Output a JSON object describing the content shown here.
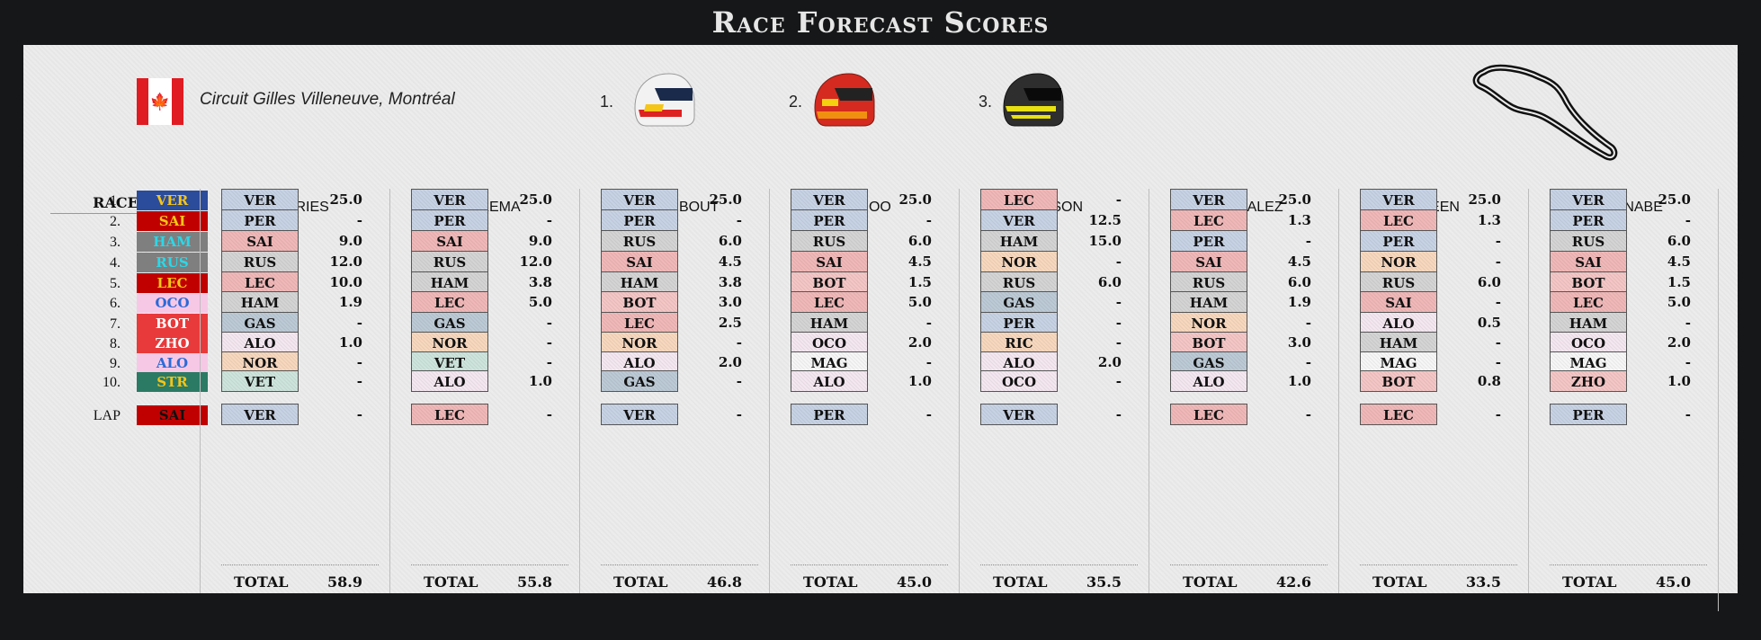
{
  "title": "Race Forecast Scores",
  "circuit": "Circuit Gilles Villeneuve, Montréal",
  "podium": [
    {
      "label": "1.",
      "helmet": "verstappen-helmet"
    },
    {
      "label": "2.",
      "helmet": "sainz-helmet"
    },
    {
      "label": "3.",
      "helmet": "hamilton-helmet"
    }
  ],
  "race_header": "RACE",
  "race": [
    {
      "pos": "1.",
      "drv": "VER"
    },
    {
      "pos": "2.",
      "drv": "SAI"
    },
    {
      "pos": "3.",
      "drv": "HAM"
    },
    {
      "pos": "4.",
      "drv": "RUS"
    },
    {
      "pos": "5.",
      "drv": "LEC"
    },
    {
      "pos": "6.",
      "drv": "OCO"
    },
    {
      "pos": "7.",
      "drv": "BOT"
    },
    {
      "pos": "8.",
      "drv": "ZHO"
    },
    {
      "pos": "9.",
      "drv": "ALO"
    },
    {
      "pos": "10.",
      "drv": "STR"
    }
  ],
  "lap": {
    "label": "LAP",
    "drv": "SAI"
  },
  "total_label": "TOTAL",
  "colors": {
    "VER": "#c7d2e4",
    "PER": "#c7d2e4",
    "SAI": "#f0b8b8",
    "LEC": "#f0b8b8",
    "RUS": "#d4d4d4",
    "HAM": "#d4d4d4",
    "GAS": "#bccad6",
    "NOR": "#f7d8be",
    "ALO": "#f4e7f0",
    "VET": "#cde4dc",
    "BOT": "#f4c6c6",
    "ZHO": "#f4c6c6",
    "OCO": "#f4e7f0",
    "MAG": "#f6f6f6",
    "RIC": "#f7d8be",
    "STR": "#cde4dc"
  },
  "race_colors": {
    "VER": {
      "bg": "#2b4b9b",
      "fg": "#f5c518"
    },
    "SAI": {
      "bg": "#c00000",
      "fg": "#f5c518"
    },
    "HAM": {
      "bg": "#7f7f7f",
      "fg": "#2ad8e8"
    },
    "RUS": {
      "bg": "#7f7f7f",
      "fg": "#2ad8e8"
    },
    "LEC": {
      "bg": "#c00000",
      "fg": "#f5c518"
    },
    "OCO": {
      "bg": "#f7c8e6",
      "fg": "#2b6ad8"
    },
    "BOT": {
      "bg": "#e83a3a",
      "fg": "#ffffff"
    },
    "ZHO": {
      "bg": "#e83a3a",
      "fg": "#ffffff"
    },
    "ALO": {
      "bg": "#f7c8e6",
      "fg": "#2b6ad8"
    },
    "STR": {
      "bg": "#2a7a64",
      "fg": "#f5c518"
    }
  },
  "players": [
    {
      "name": "DE VRIES",
      "picks": [
        [
          "VER",
          "25.0"
        ],
        [
          "PER",
          "-"
        ],
        [
          "SAI",
          "9.0"
        ],
        [
          "RUS",
          "12.0"
        ],
        [
          "LEC",
          "10.0"
        ],
        [
          "HAM",
          "1.9"
        ],
        [
          "GAS",
          "-"
        ],
        [
          "ALO",
          "1.0"
        ],
        [
          "NOR",
          "-"
        ],
        [
          "VET",
          "-"
        ]
      ],
      "lap": [
        "VER",
        "-"
      ],
      "total": "58.9"
    },
    {
      "name": "FOKKEMA",
      "picks": [
        [
          "VER",
          "25.0"
        ],
        [
          "PER",
          "-"
        ],
        [
          "SAI",
          "9.0"
        ],
        [
          "RUS",
          "12.0"
        ],
        [
          "HAM",
          "3.8"
        ],
        [
          "LEC",
          "5.0"
        ],
        [
          "GAS",
          "-"
        ],
        [
          "NOR",
          "-"
        ],
        [
          "VET",
          "-"
        ],
        [
          "ALO",
          "1.0"
        ]
      ],
      "lap": [
        "LEC",
        "-"
      ],
      "total": "55.8"
    },
    {
      "name": "CLAERBOUT",
      "picks": [
        [
          "VER",
          "25.0"
        ],
        [
          "PER",
          "-"
        ],
        [
          "RUS",
          "6.0"
        ],
        [
          "SAI",
          "4.5"
        ],
        [
          "HAM",
          "3.8"
        ],
        [
          "BOT",
          "3.0"
        ],
        [
          "LEC",
          "2.5"
        ],
        [
          "NOR",
          "-"
        ],
        [
          "ALO",
          "2.0"
        ],
        [
          "GAS",
          "-"
        ]
      ],
      "lap": [
        "VER",
        "-"
      ],
      "total": "46.8"
    },
    {
      "name": "DEROO",
      "picks": [
        [
          "VER",
          "25.0"
        ],
        [
          "PER",
          "-"
        ],
        [
          "RUS",
          "6.0"
        ],
        [
          "SAI",
          "4.5"
        ],
        [
          "BOT",
          "1.5"
        ],
        [
          "LEC",
          "5.0"
        ],
        [
          "HAM",
          "-"
        ],
        [
          "OCO",
          "2.0"
        ],
        [
          "MAG",
          "-"
        ],
        [
          "ALO",
          "1.0"
        ]
      ],
      "lap": [
        "PER",
        "-"
      ],
      "total": "45.0"
    },
    {
      "name": "WILSON",
      "picks": [
        [
          "LEC",
          "-"
        ],
        [
          "VER",
          "12.5"
        ],
        [
          "HAM",
          "15.0"
        ],
        [
          "NOR",
          "-"
        ],
        [
          "RUS",
          "6.0"
        ],
        [
          "GAS",
          "-"
        ],
        [
          "PER",
          "-"
        ],
        [
          "RIC",
          "-"
        ],
        [
          "ALO",
          "2.0"
        ],
        [
          "OCO",
          "-"
        ]
      ],
      "lap": [
        "VER",
        "-"
      ],
      "total": "35.5"
    },
    {
      "name": "GONZALEZ",
      "picks": [
        [
          "VER",
          "25.0"
        ],
        [
          "LEC",
          "1.3"
        ],
        [
          "PER",
          "-"
        ],
        [
          "SAI",
          "4.5"
        ],
        [
          "RUS",
          "6.0"
        ],
        [
          "HAM",
          "1.9"
        ],
        [
          "NOR",
          "-"
        ],
        [
          "BOT",
          "3.0"
        ],
        [
          "GAS",
          "-"
        ],
        [
          "ALO",
          "1.0"
        ]
      ],
      "lap": [
        "LEC",
        "-"
      ],
      "total": "42.6"
    },
    {
      "name": "GREEN",
      "picks": [
        [
          "VER",
          "25.0"
        ],
        [
          "LEC",
          "1.3"
        ],
        [
          "PER",
          "-"
        ],
        [
          "NOR",
          "-"
        ],
        [
          "RUS",
          "6.0"
        ],
        [
          "SAI",
          "-"
        ],
        [
          "ALO",
          "0.5"
        ],
        [
          "HAM",
          "-"
        ],
        [
          "MAG",
          "-"
        ],
        [
          "BOT",
          "0.8"
        ]
      ],
      "lap": [
        "LEC",
        "-"
      ],
      "total": "33.5"
    },
    {
      "name": "WATANABE",
      "picks": [
        [
          "VER",
          "25.0"
        ],
        [
          "PER",
          "-"
        ],
        [
          "RUS",
          "6.0"
        ],
        [
          "SAI",
          "4.5"
        ],
        [
          "BOT",
          "1.5"
        ],
        [
          "LEC",
          "5.0"
        ],
        [
          "HAM",
          "-"
        ],
        [
          "OCO",
          "2.0"
        ],
        [
          "MAG",
          "-"
        ],
        [
          "ZHO",
          "1.0"
        ]
      ],
      "lap": [
        "PER",
        "-"
      ],
      "total": "45.0"
    }
  ]
}
